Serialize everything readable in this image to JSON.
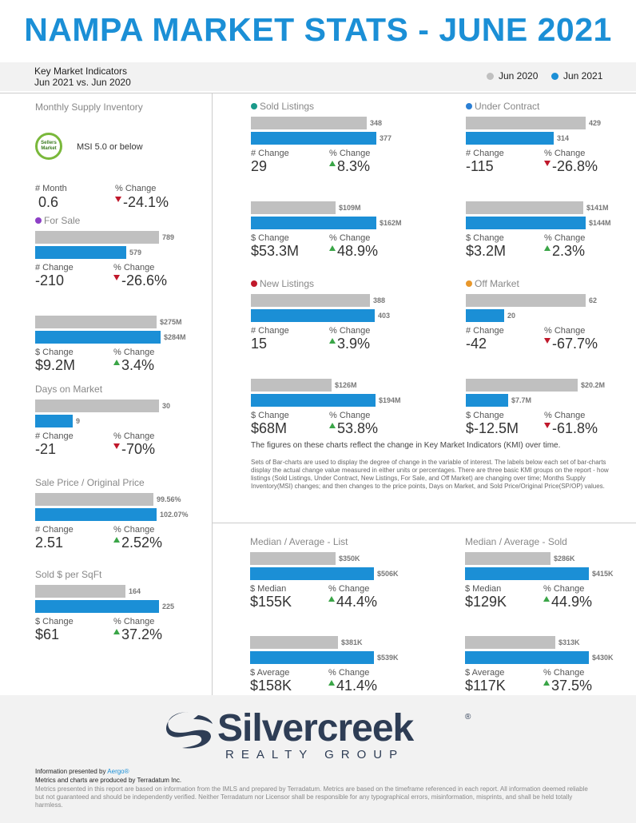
{
  "header": {
    "title": "NAMPA MARKET STATS - JUNE 2021",
    "kmi_line1": "Key Market Indicators",
    "kmi_line2": "Jun 2021 vs. Jun 2020",
    "legend_prev": "Jun 2020",
    "legend_cur": "Jun 2021"
  },
  "colors": {
    "prev": "#c0c0c0",
    "cur": "#1b8fd6",
    "up": "#3aa547",
    "down": "#c0182b"
  },
  "msi": {
    "title": "Monthly Supply Inventory",
    "badge_line1": "Sellers",
    "badge_line2": "Market",
    "badge_text": "MSI 5.0 or below",
    "label_a": "# Month",
    "value_a": "0.6",
    "label_b": "% Change",
    "value_b": "-24.1%"
  },
  "chart_data": [
    {
      "type": "bar",
      "title": "Sold Listings",
      "categories": [
        "Jun 2020",
        "Jun 2021"
      ],
      "values": [
        348,
        377
      ],
      "labels": [
        "348",
        "377"
      ],
      "change_label": "# Change",
      "change": "29",
      "pct": "8.3%"
    },
    {
      "type": "bar",
      "title": "",
      "categories": [
        "Jun 2020",
        "Jun 2021"
      ],
      "values": [
        109,
        162
      ],
      "labels": [
        "$109M",
        "$162M"
      ],
      "change_label": "$ Change",
      "change": "$53.3M",
      "pct": "48.9%"
    },
    {
      "type": "bar",
      "title": "Under Contract",
      "categories": [
        "Jun 2020",
        "Jun 2021"
      ],
      "values": [
        429,
        314
      ],
      "labels": [
        "429",
        "314"
      ],
      "change_label": "# Change",
      "change": "-115",
      "pct": "-26.8%"
    },
    {
      "type": "bar",
      "title": "",
      "categories": [
        "Jun 2020",
        "Jun 2021"
      ],
      "values": [
        141,
        144
      ],
      "labels": [
        "$141M",
        "$144M"
      ],
      "change_label": "$ Change",
      "change": "$3.2M",
      "pct": "2.3%"
    },
    {
      "type": "bar",
      "title": "New Listings",
      "categories": [
        "Jun 2020",
        "Jun 2021"
      ],
      "values": [
        388,
        403
      ],
      "labels": [
        "388",
        "403"
      ],
      "change_label": "# Change",
      "change": "15",
      "pct": "3.9%"
    },
    {
      "type": "bar",
      "title": "",
      "categories": [
        "Jun 2020",
        "Jun 2021"
      ],
      "values": [
        126,
        194
      ],
      "labels": [
        "$126M",
        "$194M"
      ],
      "change_label": "$ Change",
      "change": "$68M",
      "pct": "53.8%"
    },
    {
      "type": "bar",
      "title": "Off Market",
      "categories": [
        "Jun 2020",
        "Jun 2021"
      ],
      "values": [
        62,
        20
      ],
      "labels": [
        "62",
        "20"
      ],
      "change_label": "# Change",
      "change": "-42",
      "pct": "-67.7%"
    },
    {
      "type": "bar",
      "title": "",
      "categories": [
        "Jun 2020",
        "Jun 2021"
      ],
      "values": [
        20.2,
        7.7
      ],
      "labels": [
        "$20.2M",
        "$7.7M"
      ],
      "change_label": "$ Change",
      "change": "$-12.5M",
      "pct": "-61.8%"
    },
    {
      "type": "bar",
      "title": "For Sale",
      "categories": [
        "Jun 2020",
        "Jun 2021"
      ],
      "values": [
        789,
        579
      ],
      "labels": [
        "789",
        "579"
      ],
      "change_label": "# Change",
      "change": "-210",
      "pct": "-26.6%"
    },
    {
      "type": "bar",
      "title": "",
      "categories": [
        "Jun 2020",
        "Jun 2021"
      ],
      "values": [
        275,
        284
      ],
      "labels": [
        "$275M",
        "$284M"
      ],
      "change_label": "$ Change",
      "change": "$9.2M",
      "pct": "3.4%"
    },
    {
      "type": "bar",
      "title": "Days on Market",
      "categories": [
        "Jun 2020",
        "Jun 2021"
      ],
      "values": [
        30,
        9
      ],
      "labels": [
        "30",
        "9"
      ],
      "change_label": "# Change",
      "change": "-21",
      "pct": "-70%"
    },
    {
      "type": "bar",
      "title": "Sale Price / Original Price",
      "categories": [
        "Jun 2020",
        "Jun 2021"
      ],
      "values": [
        99.56,
        102.07
      ],
      "labels": [
        "99.56%",
        "102.07%"
      ],
      "change_label": "# Change",
      "change": "2.51",
      "pct": "2.52%"
    },
    {
      "type": "bar",
      "title": "Sold $ per SqFt",
      "categories": [
        "Jun 2020",
        "Jun 2021"
      ],
      "values": [
        164,
        225
      ],
      "labels": [
        "164",
        "225"
      ],
      "change_label": "$ Change",
      "change": "$61",
      "pct": "37.2%"
    },
    {
      "type": "bar",
      "title": "Median / Average - List",
      "categories": [
        "Jun 2020",
        "Jun 2021"
      ],
      "values": [
        350,
        506
      ],
      "labels": [
        "$350K",
        "$506K"
      ],
      "change_label": "$ Median",
      "change": "$155K",
      "pct": "44.4%"
    },
    {
      "type": "bar",
      "title": "",
      "categories": [
        "Jun 2020",
        "Jun 2021"
      ],
      "values": [
        381,
        539
      ],
      "labels": [
        "$381K",
        "$539K"
      ],
      "change_label": "$ Average",
      "change": "$158K",
      "pct": "41.4%"
    },
    {
      "type": "bar",
      "title": "Median / Average - Sold",
      "categories": [
        "Jun 2020",
        "Jun 2021"
      ],
      "values": [
        286,
        415
      ],
      "labels": [
        "$286K",
        "$415K"
      ],
      "change_label": "$ Median",
      "change": "$129K",
      "pct": "44.9%"
    },
    {
      "type": "bar",
      "title": "",
      "categories": [
        "Jun 2020",
        "Jun 2021"
      ],
      "values": [
        313,
        430
      ],
      "labels": [
        "$313K",
        "$430K"
      ],
      "change_label": "$ Average",
      "change": "$117K",
      "pct": "37.5%"
    }
  ],
  "pct_label": "% Change",
  "notes": {
    "main": "The figures on these charts reflect the change in Key Market Indicators (KMI) over time.",
    "sub": "Sets of Bar-charts are used to display the degree of change in the variable of interest. The labels below each set of bar-charts display the actual change value measured in either units or percentages. There are three basic KMI groups on the report - how listings (Sold Listings, Under Contract, New Listings, For Sale, and Off Market) are changing over time; Months Supply Inventory(MSI) changes; and then changes to the price points, Days on Market, and Sold Price/Original Price(SP/OP) values."
  },
  "footer": {
    "logo_main": "Silvercreek",
    "logo_reg": "®",
    "logo_sub": "REALTY GROUP",
    "presented_prefix": "Information presented by ",
    "presented_by": "Aergo®",
    "produced": "Metrics and charts are produced by Terradatum Inc.",
    "disclaimer": "Metrics presented in this report are based on information from the IMLS and prepared by Terradatum. Metrics are based on the timeframe referenced in each report. All information deemed reliable but not guaranteed and should be independently verified. Neither Terradatum nor Licensor shall be responsible for any typographical errors, misinformation, misprints, and shall be held totally harmless."
  }
}
